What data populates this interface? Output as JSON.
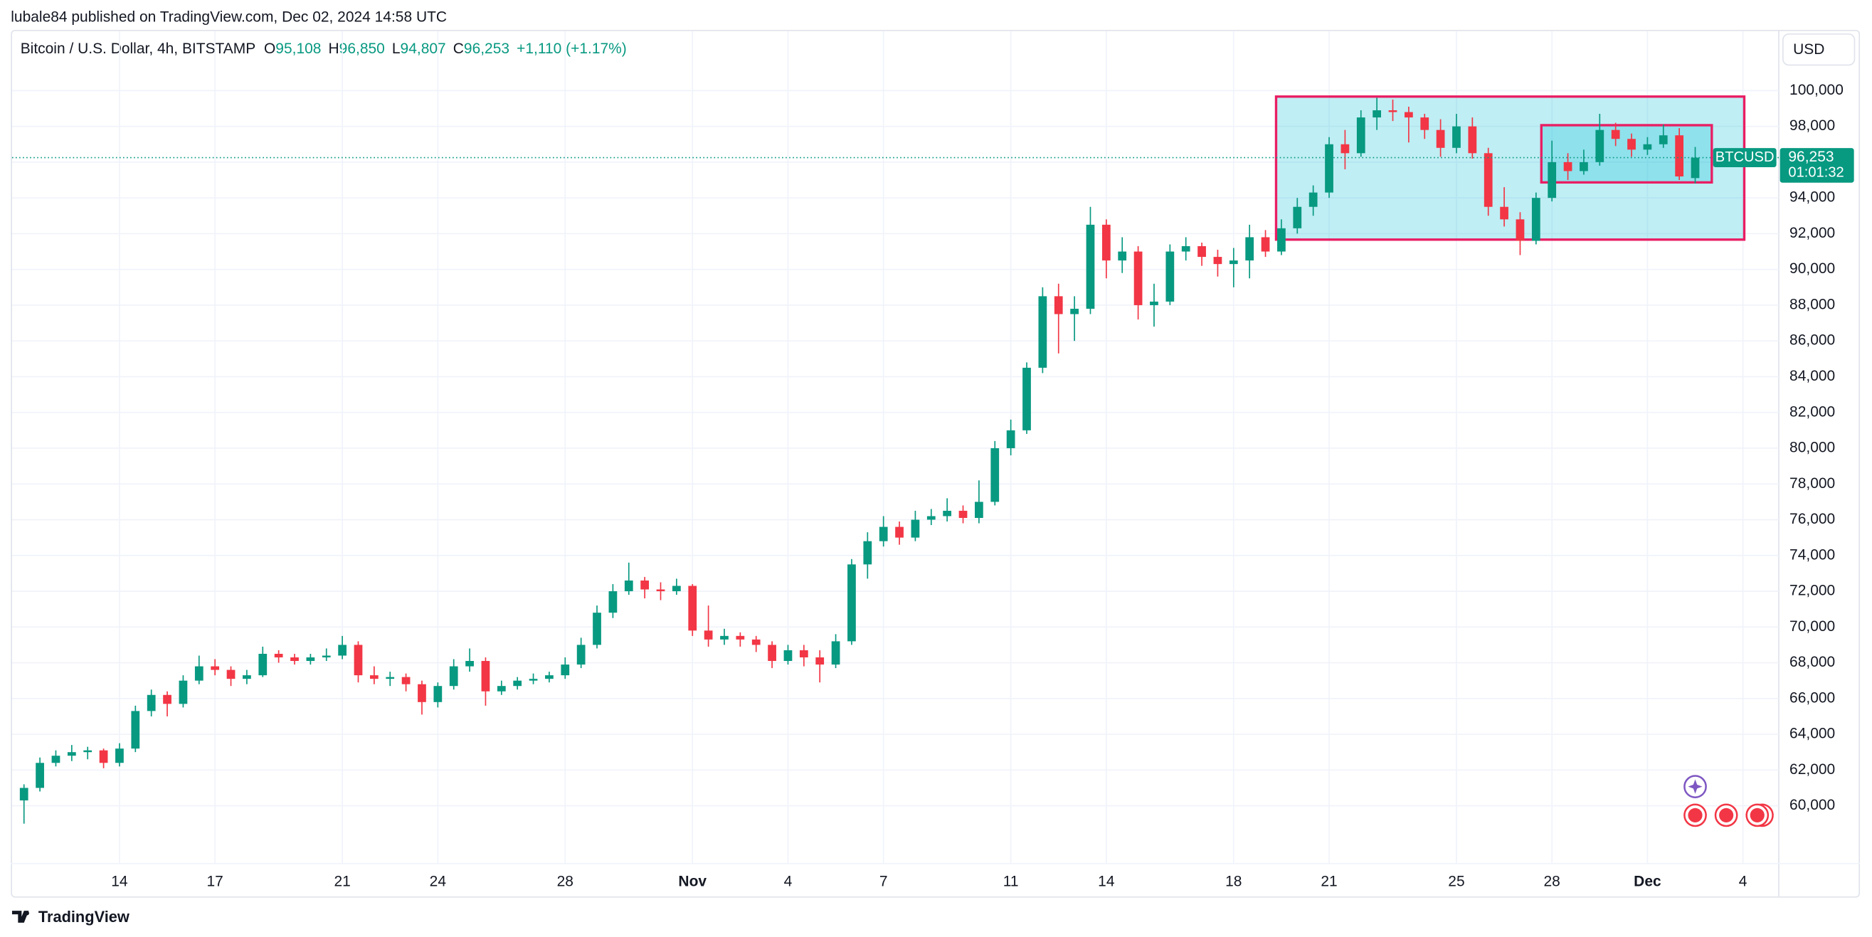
{
  "published": "lubale84 published on TradingView.com, Dec 02, 2024 14:58 UTC",
  "symbol": "Bitcoin / U.S. Dollar, 4h, BITSTAMP",
  "ohlc": [
    [
      "O",
      "95,108"
    ],
    [
      "H",
      "96,850"
    ],
    [
      "L",
      "94,807"
    ],
    [
      "C",
      "96,253"
    ]
  ],
  "change": "+1,110 (+1.17%)",
  "currency": "USD",
  "brand": "TradingView",
  "chart_data": {
    "type": "candlestick",
    "up_color": "#089981",
    "down_color": "#f23645",
    "grid": true,
    "symbol_tag": "BTCUSD",
    "last_price_label": "96,253",
    "countdown": "01:01:32",
    "xlim": [
      "2024-10-10T15:00",
      "2024-12-05T03:00"
    ],
    "ylim": [
      56800,
      103333
    ],
    "xticks": [
      {
        "value": "2024-10-14T00:00",
        "label": "14"
      },
      {
        "value": "2024-10-17T00:00",
        "label": "17"
      },
      {
        "value": "2024-10-21T00:00",
        "label": "21"
      },
      {
        "value": "2024-10-24T00:00",
        "label": "24"
      },
      {
        "value": "2024-10-28T00:00",
        "label": "28"
      },
      {
        "value": "2024-11-01T00:00",
        "label": "Nov"
      },
      {
        "value": "2024-11-04T00:00",
        "label": "4"
      },
      {
        "value": "2024-11-07T00:00",
        "label": "7"
      },
      {
        "value": "2024-11-11T00:00",
        "label": "11"
      },
      {
        "value": "2024-11-14T00:00",
        "label": "14"
      },
      {
        "value": "2024-11-18T00:00",
        "label": "18"
      },
      {
        "value": "2024-11-21T00:00",
        "label": "21"
      },
      {
        "value": "2024-11-25T00:00",
        "label": "25"
      },
      {
        "value": "2024-11-28T00:00",
        "label": "28"
      },
      {
        "value": "2024-12-01T00:00",
        "label": "Dec"
      },
      {
        "value": "2024-12-04T00:00",
        "label": "4"
      }
    ],
    "yticks": [
      {
        "value": 60000,
        "label": "60,000"
      },
      {
        "value": 62000,
        "label": "62,000"
      },
      {
        "value": 64000,
        "label": "64,000"
      },
      {
        "value": 66000,
        "label": "66,000"
      },
      {
        "value": 68000,
        "label": "68,000"
      },
      {
        "value": 70000,
        "label": "70,000"
      },
      {
        "value": 72000,
        "label": "72,000"
      },
      {
        "value": 74000,
        "label": "74,000"
      },
      {
        "value": 76000,
        "label": "76,000"
      },
      {
        "value": 78000,
        "label": "78,000"
      },
      {
        "value": 80000,
        "label": "80,000"
      },
      {
        "value": 82000,
        "label": "82,000"
      },
      {
        "value": 84000,
        "label": "84,000"
      },
      {
        "value": 86000,
        "label": "86,000"
      },
      {
        "value": 88000,
        "label": "88,000"
      },
      {
        "value": 90000,
        "label": "90,000"
      },
      {
        "value": 92000,
        "label": "92,000"
      },
      {
        "value": 94000,
        "label": "94,000"
      },
      {
        "value": 96000,
        "label": "96,000"
      },
      {
        "value": 98000,
        "label": "98,000"
      },
      {
        "value": 100000,
        "label": "100,000"
      }
    ],
    "x": [
      "2024-10-11T00:00",
      "2024-10-11T12:00",
      "2024-10-12T00:00",
      "2024-10-12T12:00",
      "2024-10-13T00:00",
      "2024-10-13T12:00",
      "2024-10-14T00:00",
      "2024-10-14T12:00",
      "2024-10-15T00:00",
      "2024-10-15T12:00",
      "2024-10-16T00:00",
      "2024-10-16T12:00",
      "2024-10-17T00:00",
      "2024-10-17T12:00",
      "2024-10-18T00:00",
      "2024-10-18T12:00",
      "2024-10-19T00:00",
      "2024-10-19T12:00",
      "2024-10-20T00:00",
      "2024-10-20T12:00",
      "2024-10-21T00:00",
      "2024-10-21T12:00",
      "2024-10-22T00:00",
      "2024-10-22T12:00",
      "2024-10-23T00:00",
      "2024-10-23T12:00",
      "2024-10-24T00:00",
      "2024-10-24T12:00",
      "2024-10-25T00:00",
      "2024-10-25T12:00",
      "2024-10-26T00:00",
      "2024-10-26T12:00",
      "2024-10-27T00:00",
      "2024-10-27T12:00",
      "2024-10-28T00:00",
      "2024-10-28T12:00",
      "2024-10-29T00:00",
      "2024-10-29T12:00",
      "2024-10-30T00:00",
      "2024-10-30T12:00",
      "2024-10-31T00:00",
      "2024-10-31T12:00",
      "2024-11-01T00:00",
      "2024-11-01T12:00",
      "2024-11-02T00:00",
      "2024-11-02T12:00",
      "2024-11-03T00:00",
      "2024-11-03T12:00",
      "2024-11-04T00:00",
      "2024-11-04T12:00",
      "2024-11-05T00:00",
      "2024-11-05T12:00",
      "2024-11-06T00:00",
      "2024-11-06T12:00",
      "2024-11-07T00:00",
      "2024-11-07T12:00",
      "2024-11-08T00:00",
      "2024-11-08T12:00",
      "2024-11-09T00:00",
      "2024-11-09T12:00",
      "2024-11-10T00:00",
      "2024-11-10T12:00",
      "2024-11-11T00:00",
      "2024-11-11T12:00",
      "2024-11-12T00:00",
      "2024-11-12T12:00",
      "2024-11-13T00:00",
      "2024-11-13T12:00",
      "2024-11-14T00:00",
      "2024-11-14T12:00",
      "2024-11-15T00:00",
      "2024-11-15T12:00",
      "2024-11-16T00:00",
      "2024-11-16T12:00",
      "2024-11-17T00:00",
      "2024-11-17T12:00",
      "2024-11-18T00:00",
      "2024-11-18T12:00",
      "2024-11-19T00:00",
      "2024-11-19T12:00",
      "2024-11-20T00:00",
      "2024-11-20T12:00",
      "2024-11-21T00:00",
      "2024-11-21T12:00",
      "2024-11-22T00:00",
      "2024-11-22T12:00",
      "2024-11-23T00:00",
      "2024-11-23T12:00",
      "2024-11-24T00:00",
      "2024-11-24T12:00",
      "2024-11-25T00:00",
      "2024-11-25T12:00",
      "2024-11-26T00:00",
      "2024-11-26T12:00",
      "2024-11-27T00:00",
      "2024-11-27T12:00",
      "2024-11-28T00:00",
      "2024-11-28T12:00",
      "2024-11-29T00:00",
      "2024-11-29T12:00",
      "2024-11-30T00:00",
      "2024-11-30T12:00",
      "2024-12-01T00:00",
      "2024-12-01T12:00",
      "2024-12-02T00:00",
      "2024-12-02T12:00"
    ],
    "open": [
      60300,
      61000,
      62400,
      62800,
      63000,
      63100,
      62400,
      63200,
      65300,
      66200,
      65700,
      67000,
      67800,
      67600,
      67100,
      67300,
      68500,
      68300,
      68100,
      68300,
      68400,
      69000,
      67300,
      67100,
      67200,
      66800,
      65800,
      66700,
      67800,
      68100,
      66400,
      66700,
      67000,
      67100,
      67300,
      67900,
      69000,
      70800,
      72000,
      72600,
      72100,
      72000,
      72300,
      69800,
      69300,
      69500,
      69300,
      69000,
      68100,
      68700,
      68300,
      67900,
      69200,
      73500,
      74800,
      75600,
      75000,
      76000,
      76200,
      76500,
      76100,
      77000,
      80000,
      81000,
      84500,
      88500,
      87500,
      87800,
      92500,
      90500,
      91000,
      88000,
      88200,
      91000,
      91300,
      90700,
      90300,
      90500,
      91800,
      91000,
      92300,
      93500,
      94300,
      97000,
      96500,
      98500,
      98900,
      98800,
      98500,
      97800,
      96800,
      98000,
      96500,
      93500,
      92800,
      91600,
      94000,
      96000,
      95500,
      96000,
      97800,
      97300,
      96700,
      97000,
      97500,
      95108
    ],
    "high": [
      61200,
      62700,
      63100,
      63400,
      63300,
      63200,
      63500,
      65600,
      66500,
      66400,
      67300,
      68400,
      68200,
      67800,
      67600,
      68900,
      68700,
      68500,
      68500,
      68800,
      69500,
      69200,
      67800,
      67500,
      67400,
      67000,
      66900,
      68200,
      68800,
      68300,
      67000,
      67200,
      67400,
      67500,
      68300,
      69400,
      71200,
      72400,
      73600,
      72800,
      72500,
      72700,
      72400,
      71200,
      69900,
      69700,
      69500,
      69200,
      69000,
      69000,
      68700,
      69600,
      73800,
      75300,
      76200,
      75900,
      76500,
      76600,
      77200,
      76800,
      78200,
      80400,
      81600,
      84800,
      89000,
      89200,
      88500,
      93500,
      92800,
      91800,
      91300,
      89200,
      91400,
      91800,
      91500,
      91100,
      91200,
      92500,
      92200,
      92800,
      94000,
      94700,
      97400,
      97800,
      98900,
      99600,
      99500,
      99100,
      98700,
      98400,
      98700,
      98500,
      96800,
      94600,
      93200,
      94300,
      97200,
      96500,
      96700,
      98700,
      98200,
      97600,
      97400,
      98100,
      97900,
      96850
    ],
    "low": [
      59000,
      60800,
      62200,
      62500,
      62600,
      62100,
      62200,
      63000,
      65000,
      65000,
      65500,
      66800,
      67300,
      66700,
      66800,
      67200,
      68000,
      67900,
      67900,
      68100,
      68200,
      66900,
      66800,
      66700,
      66400,
      65100,
      65500,
      66500,
      67500,
      65600,
      66200,
      66500,
      66800,
      66900,
      67100,
      67700,
      68800,
      70500,
      71800,
      71600,
      71500,
      71800,
      69500,
      68900,
      69000,
      68900,
      68600,
      67700,
      67900,
      67800,
      66900,
      67700,
      69000,
      72700,
      74500,
      74600,
      74800,
      75700,
      75900,
      75800,
      75800,
      76800,
      79600,
      80800,
      84200,
      85300,
      86000,
      87500,
      89500,
      89800,
      87200,
      86800,
      88000,
      90500,
      90200,
      89600,
      89000,
      89500,
      90700,
      90800,
      92000,
      93000,
      94000,
      95600,
      96300,
      97800,
      98300,
      97100,
      97300,
      96300,
      96500,
      96200,
      93000,
      92400,
      90800,
      91400,
      93800,
      95000,
      95300,
      95800,
      96900,
      96300,
      96400,
      96800,
      95000,
      94807
    ],
    "close": [
      61000,
      62400,
      62800,
      63000,
      63100,
      62400,
      63200,
      65300,
      66200,
      65700,
      67000,
      67800,
      67600,
      67100,
      67300,
      68500,
      68300,
      68100,
      68300,
      68400,
      69000,
      67300,
      67100,
      67200,
      66800,
      65800,
      66700,
      67800,
      68100,
      66400,
      66700,
      67000,
      67100,
      67300,
      67900,
      69000,
      70800,
      72000,
      72600,
      72100,
      72000,
      72300,
      69800,
      69300,
      69500,
      69300,
      69000,
      68100,
      68700,
      68300,
      67900,
      69200,
      73500,
      74800,
      75600,
      75000,
      76000,
      76200,
      76500,
      76100,
      77000,
      80000,
      81000,
      84500,
      88500,
      87500,
      87800,
      92500,
      90500,
      91000,
      88000,
      88200,
      91000,
      91300,
      90700,
      90300,
      90500,
      91800,
      91000,
      92300,
      93500,
      94300,
      97000,
      96500,
      98500,
      98900,
      98800,
      98500,
      97800,
      96800,
      98000,
      96500,
      93500,
      92800,
      91600,
      94000,
      96000,
      95500,
      96000,
      97800,
      97300,
      96700,
      97000,
      97500,
      95200,
      96253
    ],
    "rectangles": [
      {
        "x": [
          "2024-11-19T08:00",
          "2024-12-04T01:00"
        ],
        "y": [
          91667,
          99667
        ],
        "fill": "#00bcd4",
        "border": "#e91e63"
      },
      {
        "x": [
          "2024-11-27T16:00",
          "2024-12-03T00:30"
        ],
        "y": [
          94867,
          98067
        ],
        "fill": "#00bcd4",
        "border": "#e91e63"
      }
    ]
  }
}
